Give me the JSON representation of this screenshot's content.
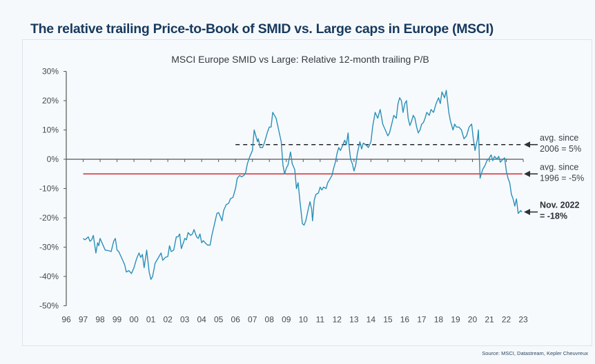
{
  "page": {
    "title": "The relative trailing Price-to-Book of SMID vs. Large caps in Europe (MSCI)",
    "source": "Source: MSCI, Datastream, Kepler Cheuvreux"
  },
  "colors": {
    "title": "#173a5e",
    "series": "#2a8fb8",
    "avg_1996": "#d42a2a",
    "avg_2006": "#222222",
    "axis": "#555555"
  },
  "chart_data": {
    "type": "line",
    "title": "MSCI Europe SMID vs Large: Relative 12-month trailing P/B",
    "xlabel": "",
    "ylabel": "",
    "x_ticks": [
      "96",
      "97",
      "98",
      "99",
      "00",
      "01",
      "02",
      "03",
      "04",
      "05",
      "06",
      "07",
      "08",
      "09",
      "10",
      "11",
      "12",
      "13",
      "14",
      "15",
      "16",
      "17",
      "18",
      "19",
      "20",
      "21",
      "22",
      "23"
    ],
    "x_range": [
      1996,
      2023
    ],
    "y_ticks": [
      "30%",
      "20%",
      "10%",
      "0%",
      "-10%",
      "-20%",
      "-30%",
      "-40%",
      "-50%"
    ],
    "ylim": [
      -50,
      30
    ],
    "y_unit": "%",
    "grid": false,
    "series": [
      {
        "name": "Relative 12-month trailing P/B (SMID vs Large)",
        "points": [
          [
            1997.0,
            -27
          ],
          [
            1997.1,
            -27.5
          ],
          [
            1997.2,
            -27
          ],
          [
            1997.3,
            -26.5
          ],
          [
            1997.4,
            -28
          ],
          [
            1997.5,
            -27.5
          ],
          [
            1997.6,
            -26
          ],
          [
            1997.75,
            -32
          ],
          [
            1997.85,
            -28.5
          ],
          [
            1997.92,
            -29.5
          ],
          [
            1998.0,
            -27
          ],
          [
            1998.15,
            -29
          ],
          [
            1998.3,
            -31
          ],
          [
            1998.5,
            -31.2
          ],
          [
            1998.65,
            -31.5
          ],
          [
            1998.8,
            -28
          ],
          [
            1998.9,
            -27
          ],
          [
            1999.0,
            -31
          ],
          [
            1999.1,
            -31.5
          ],
          [
            1999.3,
            -34
          ],
          [
            1999.45,
            -36
          ],
          [
            1999.55,
            -38.5
          ],
          [
            1999.7,
            -38
          ],
          [
            1999.85,
            -39
          ],
          [
            2000.0,
            -37
          ],
          [
            2000.15,
            -34
          ],
          [
            2000.3,
            -32
          ],
          [
            2000.4,
            -33.5
          ],
          [
            2000.5,
            -32.5
          ],
          [
            2000.6,
            -37
          ],
          [
            2000.75,
            -31
          ],
          [
            2000.9,
            -38.5
          ],
          [
            2001.0,
            -41
          ],
          [
            2001.1,
            -40
          ],
          [
            2001.25,
            -35.5
          ],
          [
            2001.4,
            -34
          ],
          [
            2001.6,
            -32
          ],
          [
            2001.7,
            -34.5
          ],
          [
            2001.85,
            -33.5
          ],
          [
            2002.0,
            -33.2
          ],
          [
            2002.1,
            -29.5
          ],
          [
            2002.2,
            -31.5
          ],
          [
            2002.35,
            -31
          ],
          [
            2002.5,
            -26.5
          ],
          [
            2002.6,
            -26.5
          ],
          [
            2002.7,
            -25.5
          ],
          [
            2002.8,
            -30.5
          ],
          [
            2002.95,
            -28
          ],
          [
            2003.0,
            -27
          ],
          [
            2003.1,
            -27.5
          ],
          [
            2003.2,
            -25
          ],
          [
            2003.35,
            -26
          ],
          [
            2003.45,
            -25.5
          ],
          [
            2003.55,
            -24
          ],
          [
            2003.7,
            -26.5
          ],
          [
            2003.8,
            -27
          ],
          [
            2003.9,
            -25.5
          ],
          [
            2004.0,
            -28.5
          ],
          [
            2004.1,
            -27.8
          ],
          [
            2004.2,
            -28.5
          ],
          [
            2004.35,
            -29.3
          ],
          [
            2004.5,
            -29.3
          ],
          [
            2004.6,
            -26
          ],
          [
            2004.8,
            -21
          ],
          [
            2004.9,
            -18.5
          ],
          [
            2005.0,
            -18.2
          ],
          [
            2005.1,
            -19.5
          ],
          [
            2005.2,
            -21
          ],
          [
            2005.3,
            -17.5
          ],
          [
            2005.45,
            -15.5
          ],
          [
            2005.6,
            -15
          ],
          [
            2005.7,
            -13.5
          ],
          [
            2005.85,
            -13
          ],
          [
            2006.0,
            -10
          ],
          [
            2006.1,
            -6.5
          ],
          [
            2006.25,
            -5.5
          ],
          [
            2006.35,
            -6
          ],
          [
            2006.5,
            -5.5
          ],
          [
            2006.6,
            -4.5
          ],
          [
            2006.7,
            -1.5
          ],
          [
            2006.85,
            1
          ],
          [
            2007.0,
            3
          ],
          [
            2007.1,
            10
          ],
          [
            2007.2,
            8
          ],
          [
            2007.3,
            6
          ],
          [
            2007.35,
            7
          ],
          [
            2007.45,
            4
          ],
          [
            2007.6,
            4
          ],
          [
            2007.7,
            5.5
          ],
          [
            2007.9,
            9.5
          ],
          [
            2008.0,
            11
          ],
          [
            2008.1,
            11
          ],
          [
            2008.2,
            16
          ],
          [
            2008.3,
            15
          ],
          [
            2008.4,
            14
          ],
          [
            2008.55,
            10
          ],
          [
            2008.7,
            6
          ],
          [
            2008.8,
            -2
          ],
          [
            2008.9,
            -5
          ],
          [
            2009.0,
            -3
          ],
          [
            2009.1,
            -2
          ],
          [
            2009.25,
            2.5
          ],
          [
            2009.35,
            -1.5
          ],
          [
            2009.5,
            -3.5
          ],
          [
            2009.6,
            -10
          ],
          [
            2009.7,
            -8
          ],
          [
            2009.8,
            -14
          ],
          [
            2009.95,
            -22
          ],
          [
            2010.05,
            -22.5
          ],
          [
            2010.15,
            -21
          ],
          [
            2010.3,
            -17
          ],
          [
            2010.4,
            -14.5
          ],
          [
            2010.5,
            -17
          ],
          [
            2010.55,
            -21
          ],
          [
            2010.65,
            -14
          ],
          [
            2010.75,
            -12
          ],
          [
            2010.9,
            -11.5
          ],
          [
            2011.0,
            -9.5
          ],
          [
            2011.1,
            -10.5
          ],
          [
            2011.2,
            -9.5
          ],
          [
            2011.35,
            -10
          ],
          [
            2011.45,
            -8
          ],
          [
            2011.55,
            -7
          ],
          [
            2011.7,
            -5.5
          ],
          [
            2011.8,
            -3
          ],
          [
            2011.9,
            -1
          ],
          [
            2012.0,
            2
          ],
          [
            2012.1,
            4
          ],
          [
            2012.2,
            3
          ],
          [
            2012.35,
            5
          ],
          [
            2012.45,
            6.5
          ],
          [
            2012.55,
            5
          ],
          [
            2012.65,
            9
          ],
          [
            2012.7,
            5
          ],
          [
            2012.8,
            0
          ],
          [
            2012.9,
            -1.5
          ],
          [
            2013.0,
            -4
          ],
          [
            2013.1,
            -2
          ],
          [
            2013.2,
            2
          ],
          [
            2013.35,
            6
          ],
          [
            2013.45,
            3.5
          ],
          [
            2013.55,
            5.5
          ],
          [
            2013.7,
            5
          ],
          [
            2013.85,
            4
          ],
          [
            2014.0,
            6
          ],
          [
            2014.1,
            11
          ],
          [
            2014.25,
            16
          ],
          [
            2014.4,
            14
          ],
          [
            2014.55,
            17
          ],
          [
            2014.7,
            12
          ],
          [
            2014.85,
            10
          ],
          [
            2015.0,
            8
          ],
          [
            2015.1,
            9
          ],
          [
            2015.25,
            12.5
          ],
          [
            2015.35,
            15
          ],
          [
            2015.5,
            14
          ],
          [
            2015.6,
            19
          ],
          [
            2015.7,
            21
          ],
          [
            2015.8,
            20
          ],
          [
            2015.9,
            16
          ],
          [
            2016.0,
            19
          ],
          [
            2016.1,
            20
          ],
          [
            2016.2,
            14
          ],
          [
            2016.3,
            11.5
          ],
          [
            2016.4,
            13
          ],
          [
            2016.5,
            15
          ],
          [
            2016.6,
            14
          ],
          [
            2016.7,
            11
          ],
          [
            2016.8,
            9
          ],
          [
            2016.9,
            10
          ],
          [
            2017.0,
            12
          ],
          [
            2017.1,
            12.5
          ],
          [
            2017.2,
            14
          ],
          [
            2017.3,
            16
          ],
          [
            2017.45,
            15
          ],
          [
            2017.55,
            17
          ],
          [
            2017.7,
            16
          ],
          [
            2017.85,
            19
          ],
          [
            2018.0,
            21
          ],
          [
            2018.1,
            19
          ],
          [
            2018.2,
            23
          ],
          [
            2018.35,
            21
          ],
          [
            2018.45,
            23.5
          ],
          [
            2018.6,
            16
          ],
          [
            2018.7,
            13
          ],
          [
            2018.85,
            10
          ],
          [
            2018.95,
            12
          ],
          [
            2019.05,
            11
          ],
          [
            2019.2,
            11
          ],
          [
            2019.35,
            10
          ],
          [
            2019.5,
            7
          ],
          [
            2019.65,
            8
          ],
          [
            2019.8,
            11
          ],
          [
            2019.95,
            12
          ],
          [
            2020.05,
            7
          ],
          [
            2020.15,
            3
          ],
          [
            2020.3,
            7
          ],
          [
            2020.35,
            10
          ],
          [
            2020.45,
            -6.5
          ],
          [
            2020.6,
            -3.5
          ],
          [
            2020.75,
            -2
          ],
          [
            2020.85,
            -0.5
          ],
          [
            2020.95,
            0
          ],
          [
            2021.1,
            1.5
          ],
          [
            2021.2,
            -0.5
          ],
          [
            2021.3,
            1
          ],
          [
            2021.45,
            0
          ],
          [
            2021.55,
            1
          ],
          [
            2021.65,
            -1
          ],
          [
            2021.8,
            0
          ],
          [
            2021.9,
            0.5
          ],
          [
            2022.0,
            -4
          ],
          [
            2022.1,
            -6.5
          ],
          [
            2022.2,
            -8
          ],
          [
            2022.3,
            -12
          ],
          [
            2022.4,
            -13.5
          ],
          [
            2022.5,
            -16
          ],
          [
            2022.6,
            -13.5
          ],
          [
            2022.7,
            -18.5
          ],
          [
            2022.85,
            -17.5
          ],
          [
            2022.92,
            -18
          ]
        ]
      }
    ],
    "reference_lines": [
      {
        "name": "avg. since 2006",
        "value": 5,
        "from": 2006,
        "to": 2022.95,
        "style": "dashed",
        "label_line1": "avg. since",
        "label_line2": "2006 = 5%"
      },
      {
        "name": "avg. since 1996",
        "value": -5,
        "from": 1997,
        "to": 2022.95,
        "style": "solid",
        "label_line1": "avg. since",
        "label_line2": "1996 = -5%"
      }
    ],
    "annotations": [
      {
        "text_line1": "Nov. 2022",
        "text_line2": "= -18%",
        "value": -18,
        "bold": true
      }
    ],
    "legend": "none"
  }
}
